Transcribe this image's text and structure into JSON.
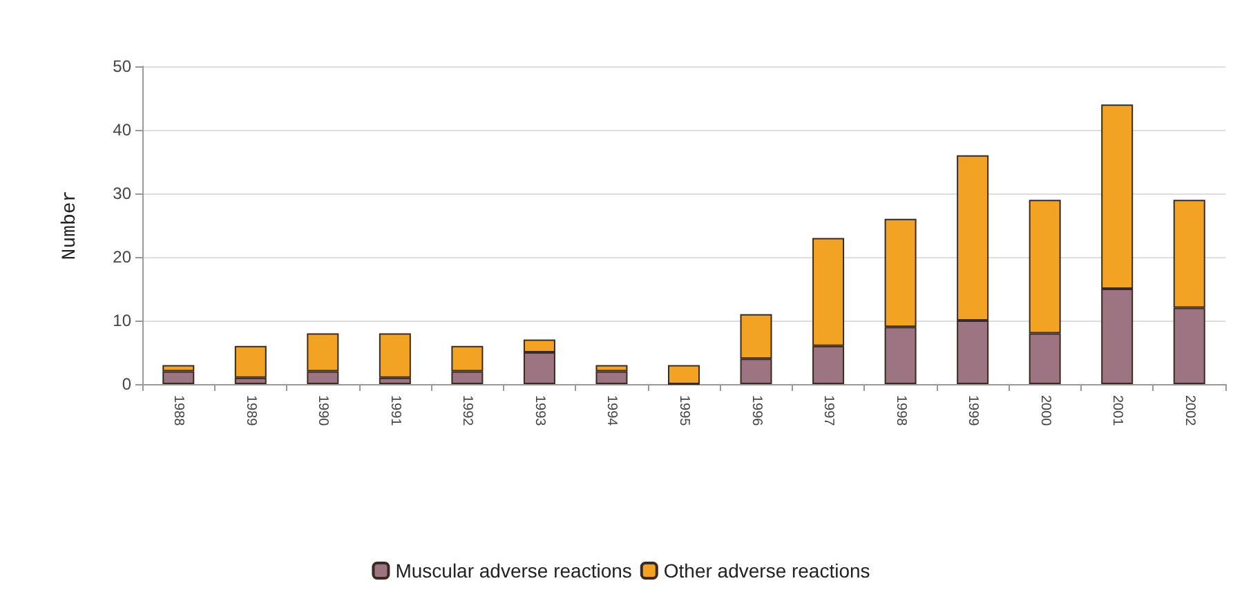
{
  "chart_data": {
    "type": "bar",
    "ylabel": "Number",
    "stacked": true,
    "categories": [
      "1988",
      "1989",
      "1990",
      "1991",
      "1992",
      "1993",
      "1994",
      "1995",
      "1996",
      "1997",
      "1998",
      "1999",
      "2000",
      "2001",
      "2002"
    ],
    "series": [
      {
        "name": "Muscular adverse reactions",
        "color": "#9c7482",
        "values": [
          2,
          1,
          2,
          1,
          2,
          5,
          2,
          0,
          4,
          6,
          9,
          10,
          8,
          15,
          12
        ]
      },
      {
        "name": "Other adverse reactions",
        "color": "#f2a324",
        "values": [
          1,
          5,
          6,
          7,
          4,
          2,
          1,
          3,
          7,
          17,
          17,
          26,
          21,
          29,
          17
        ]
      }
    ],
    "ylim": [
      0,
      50
    ],
    "yticks": [
      0,
      10,
      20,
      30,
      40,
      50
    ],
    "grid": "y",
    "legend": "bottom"
  }
}
